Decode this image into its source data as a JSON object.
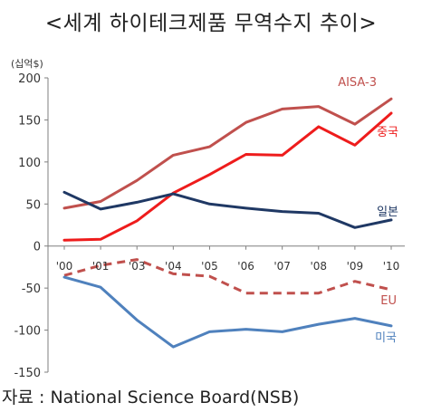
{
  "chart_data": {
    "type": "line",
    "title": "<세계 하이테크제품 무역수지 추이>",
    "unit_label": "(십억$)",
    "x": [
      "'00",
      "'01",
      "'03",
      "'04",
      "'05",
      "'06",
      "'07",
      "'08",
      "'09",
      "'10"
    ],
    "ylim": [
      -150,
      200
    ],
    "yticks": [
      200,
      150,
      100,
      50,
      0,
      -50,
      -100,
      -150
    ],
    "grid": false,
    "series": [
      {
        "name": "AISA-3",
        "color": "#c0504d",
        "dash": false,
        "values": [
          45,
          53,
          78,
          108,
          118,
          147,
          163,
          166,
          145,
          175
        ]
      },
      {
        "name": "중국",
        "color": "#ee1c1c",
        "dash": false,
        "values": [
          7,
          8,
          30,
          63,
          85,
          109,
          108,
          142,
          120,
          158
        ]
      },
      {
        "name": "일본",
        "color": "#1f3864",
        "dash": false,
        "values": [
          64,
          44,
          52,
          62,
          50,
          45,
          41,
          39,
          22,
          31
        ]
      },
      {
        "name": "EU",
        "color": "#c0504d",
        "dash": true,
        "values": [
          -35,
          -23,
          -16,
          -33,
          -36,
          -56,
          -56,
          -56,
          -42,
          -52
        ]
      },
      {
        "name": "미국",
        "color": "#4f81bd",
        "dash": false,
        "values": [
          -37,
          -49,
          -88,
          -120,
          -102,
          -99,
          -102,
          -93,
          -86,
          -95
        ]
      }
    ]
  },
  "source": "자료 : National Science Board(NSB)"
}
